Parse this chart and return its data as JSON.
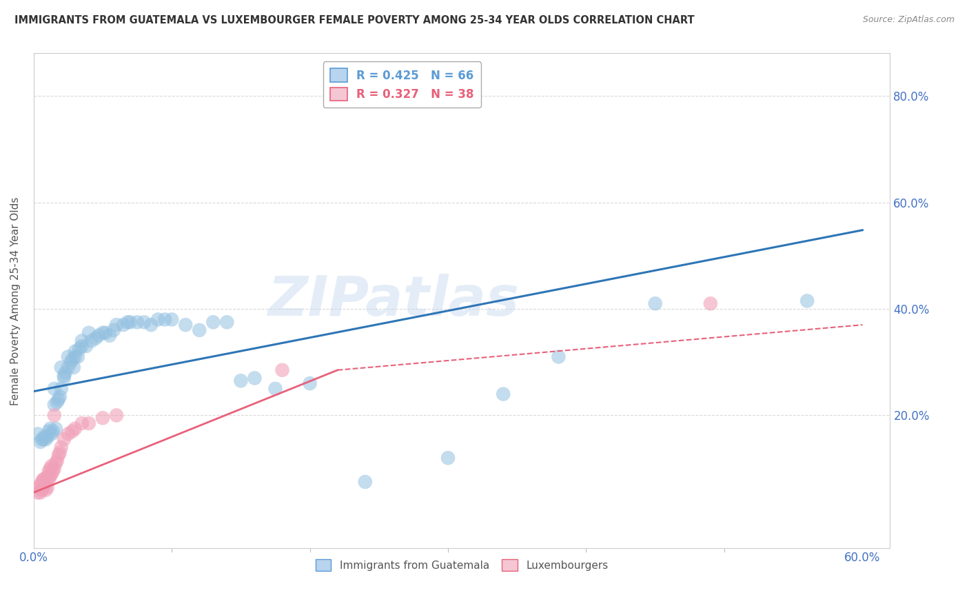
{
  "title": "IMMIGRANTS FROM GUATEMALA VS LUXEMBOURGER FEMALE POVERTY AMONG 25-34 YEAR OLDS CORRELATION CHART",
  "source": "Source: ZipAtlas.com",
  "ylabel": "Female Poverty Among 25-34 Year Olds",
  "xlim": [
    0.0,
    0.62
  ],
  "ylim": [
    -0.05,
    0.88
  ],
  "xticks": [
    0.0,
    0.6
  ],
  "xticklabels": [
    "0.0%",
    "60.0%"
  ],
  "yticks_right": [
    0.2,
    0.4,
    0.6,
    0.8
  ],
  "yticklabels_right": [
    "20.0%",
    "40.0%",
    "60.0%",
    "80.0%"
  ],
  "legend_entries": [
    {
      "label": "R = 0.425   N = 66",
      "color": "#5b9bd5"
    },
    {
      "label": "R = 0.327   N = 38",
      "color": "#e8607a"
    }
  ],
  "watermark_text": "ZIPatlas",
  "blue_color": "#92c0e0",
  "pink_color": "#f0a0b8",
  "blue_edge_color": "#5b9bd5",
  "pink_edge_color": "#e8607a",
  "blue_line_color": "#2e75b6",
  "pink_line_color": "#e8607a",
  "blue_scatter": [
    [
      0.003,
      0.165
    ],
    [
      0.005,
      0.15
    ],
    [
      0.006,
      0.155
    ],
    [
      0.007,
      0.155
    ],
    [
      0.008,
      0.16
    ],
    [
      0.009,
      0.155
    ],
    [
      0.01,
      0.16
    ],
    [
      0.011,
      0.17
    ],
    [
      0.012,
      0.175
    ],
    [
      0.013,
      0.165
    ],
    [
      0.014,
      0.17
    ],
    [
      0.015,
      0.22
    ],
    [
      0.015,
      0.25
    ],
    [
      0.016,
      0.175
    ],
    [
      0.017,
      0.225
    ],
    [
      0.018,
      0.23
    ],
    [
      0.019,
      0.235
    ],
    [
      0.02,
      0.25
    ],
    [
      0.02,
      0.29
    ],
    [
      0.022,
      0.27
    ],
    [
      0.022,
      0.275
    ],
    [
      0.023,
      0.28
    ],
    [
      0.025,
      0.29
    ],
    [
      0.025,
      0.31
    ],
    [
      0.027,
      0.3
    ],
    [
      0.028,
      0.305
    ],
    [
      0.029,
      0.29
    ],
    [
      0.03,
      0.31
    ],
    [
      0.03,
      0.32
    ],
    [
      0.032,
      0.31
    ],
    [
      0.033,
      0.325
    ],
    [
      0.035,
      0.33
    ],
    [
      0.035,
      0.34
    ],
    [
      0.038,
      0.33
    ],
    [
      0.04,
      0.355
    ],
    [
      0.042,
      0.34
    ],
    [
      0.045,
      0.345
    ],
    [
      0.047,
      0.35
    ],
    [
      0.05,
      0.355
    ],
    [
      0.052,
      0.355
    ],
    [
      0.055,
      0.35
    ],
    [
      0.058,
      0.36
    ],
    [
      0.06,
      0.37
    ],
    [
      0.065,
      0.37
    ],
    [
      0.068,
      0.375
    ],
    [
      0.07,
      0.375
    ],
    [
      0.075,
      0.375
    ],
    [
      0.08,
      0.375
    ],
    [
      0.085,
      0.37
    ],
    [
      0.09,
      0.38
    ],
    [
      0.095,
      0.38
    ],
    [
      0.1,
      0.38
    ],
    [
      0.11,
      0.37
    ],
    [
      0.12,
      0.36
    ],
    [
      0.13,
      0.375
    ],
    [
      0.14,
      0.375
    ],
    [
      0.15,
      0.265
    ],
    [
      0.16,
      0.27
    ],
    [
      0.175,
      0.25
    ],
    [
      0.2,
      0.26
    ],
    [
      0.24,
      0.075
    ],
    [
      0.3,
      0.12
    ],
    [
      0.34,
      0.24
    ],
    [
      0.38,
      0.31
    ],
    [
      0.45,
      0.41
    ],
    [
      0.56,
      0.415
    ]
  ],
  "pink_scatter": [
    [
      0.003,
      0.055
    ],
    [
      0.004,
      0.065
    ],
    [
      0.005,
      0.055
    ],
    [
      0.005,
      0.07
    ],
    [
      0.006,
      0.06
    ],
    [
      0.006,
      0.075
    ],
    [
      0.007,
      0.065
    ],
    [
      0.007,
      0.08
    ],
    [
      0.008,
      0.07
    ],
    [
      0.008,
      0.08
    ],
    [
      0.009,
      0.06
    ],
    [
      0.009,
      0.075
    ],
    [
      0.01,
      0.065
    ],
    [
      0.01,
      0.085
    ],
    [
      0.011,
      0.08
    ],
    [
      0.011,
      0.095
    ],
    [
      0.012,
      0.085
    ],
    [
      0.012,
      0.1
    ],
    [
      0.013,
      0.09
    ],
    [
      0.013,
      0.105
    ],
    [
      0.014,
      0.095
    ],
    [
      0.015,
      0.1
    ],
    [
      0.015,
      0.2
    ],
    [
      0.016,
      0.11
    ],
    [
      0.017,
      0.115
    ],
    [
      0.018,
      0.125
    ],
    [
      0.019,
      0.13
    ],
    [
      0.02,
      0.14
    ],
    [
      0.022,
      0.155
    ],
    [
      0.025,
      0.165
    ],
    [
      0.028,
      0.17
    ],
    [
      0.03,
      0.175
    ],
    [
      0.035,
      0.185
    ],
    [
      0.04,
      0.185
    ],
    [
      0.05,
      0.195
    ],
    [
      0.06,
      0.2
    ],
    [
      0.18,
      0.285
    ],
    [
      0.49,
      0.41
    ]
  ],
  "blue_line": {
    "x0": 0.0,
    "y0": 0.245,
    "x1": 0.6,
    "y1": 0.548
  },
  "pink_line_solid": {
    "x0": 0.0,
    "y0": 0.055,
    "x1": 0.22,
    "y1": 0.285
  },
  "pink_line_dashed": {
    "x0": 0.22,
    "y0": 0.285,
    "x1": 0.6,
    "y1": 0.37
  },
  "grid_color": "#d9d9d9",
  "background_color": "#ffffff",
  "legend_box_color": "#dce6f1",
  "legend_pink_box_color": "#fce4ec"
}
